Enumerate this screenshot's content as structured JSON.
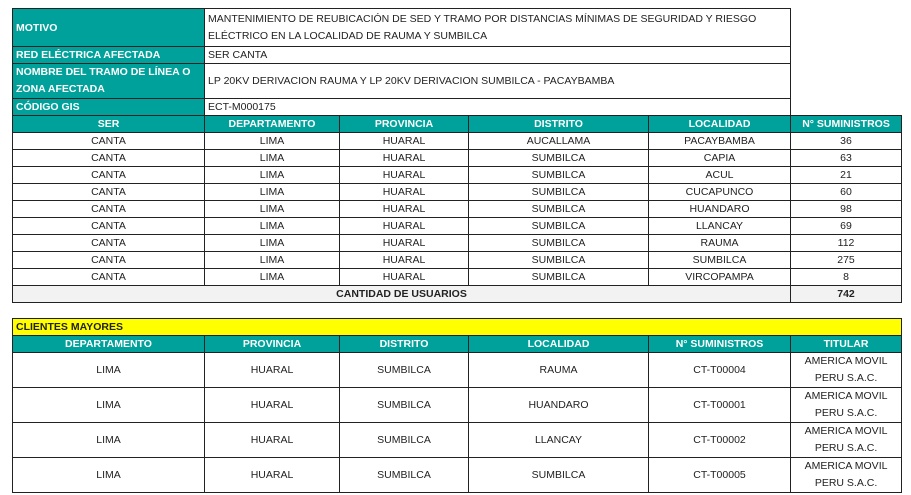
{
  "info": {
    "motivo_label": "MOTIVO",
    "motivo_value": "MANTENIMIENTO DE REUBICACIÓN DE SED Y TRAMO POR DISTANCIAS MÍNIMAS DE SEGURIDAD Y RIESGO ELÉCTRICO EN LA LOCALIDAD DE RAUMA Y SUMBILCA",
    "red_label": "RED ELÉCTRICA AFECTADA",
    "red_value": "SER CANTA",
    "tramo_label": "NOMBRE DEL TRAMO DE LÍNEA O ZONA AFECTADA",
    "tramo_value": "LP 20KV DERIVACION RAUMA Y LP 20KV DERIVACION SUMBILCA - PACAYBAMBA",
    "gis_label": "CÓDIGO GIS",
    "gis_value": "ECT-M000175"
  },
  "suministros": {
    "headers": [
      "SER",
      "DEPARTAMENTO",
      "PROVINCIA",
      "DISTRITO",
      "LOCALIDAD",
      "N° SUMINISTROS"
    ],
    "rows": [
      [
        "CANTA",
        "LIMA",
        "HUARAL",
        "AUCALLAMA",
        "PACAYBAMBA",
        "36"
      ],
      [
        "CANTA",
        "LIMA",
        "HUARAL",
        "SUMBILCA",
        "CAPIA",
        "63"
      ],
      [
        "CANTA",
        "LIMA",
        "HUARAL",
        "SUMBILCA",
        "ACUL",
        "21"
      ],
      [
        "CANTA",
        "LIMA",
        "HUARAL",
        "SUMBILCA",
        "CUCAPUNCO",
        "60"
      ],
      [
        "CANTA",
        "LIMA",
        "HUARAL",
        "SUMBILCA",
        "HUANDARO",
        "98"
      ],
      [
        "CANTA",
        "LIMA",
        "HUARAL",
        "SUMBILCA",
        "LLANCAY",
        "69"
      ],
      [
        "CANTA",
        "LIMA",
        "HUARAL",
        "SUMBILCA",
        "RAUMA",
        "112"
      ],
      [
        "CANTA",
        "LIMA",
        "HUARAL",
        "SUMBILCA",
        "SUMBILCA",
        "275"
      ],
      [
        "CANTA",
        "LIMA",
        "HUARAL",
        "SUMBILCA",
        "VIRCOPAMPA",
        "8"
      ]
    ],
    "total_label": "CANTIDAD DE USUARIOS",
    "total_value": "742"
  },
  "clientes": {
    "title": "CLIENTES MAYORES",
    "headers": [
      "DEPARTAMENTO",
      "PROVINCIA",
      "DISTRITO",
      "LOCALIDAD",
      "N° SUMINISTROS",
      "TITULAR"
    ],
    "rows": [
      [
        "LIMA",
        "HUARAL",
        "SUMBILCA",
        "RAUMA",
        "CT-T00004",
        "AMERICA MOVIL PERU S.A.C."
      ],
      [
        "LIMA",
        "HUARAL",
        "SUMBILCA",
        "HUANDARO",
        "CT-T00001",
        "AMERICA MOVIL PERU S.A.C."
      ],
      [
        "LIMA",
        "HUARAL",
        "SUMBILCA",
        "LLANCAY",
        "CT-T00002",
        "AMERICA MOVIL PERU S.A.C."
      ],
      [
        "LIMA",
        "HUARAL",
        "SUMBILCA",
        "SUMBILCA",
        "CT-T00005",
        "AMERICA MOVIL PERU S.A.C."
      ]
    ]
  },
  "colors": {
    "header_teal": "#00a19a",
    "title_yellow": "#ffff00",
    "total_grey": "#f2f2f2"
  }
}
